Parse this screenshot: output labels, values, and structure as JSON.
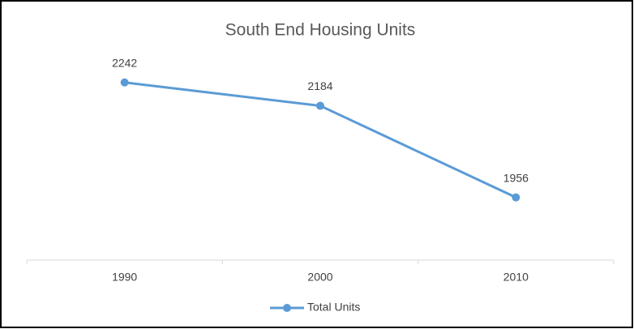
{
  "chart_data": {
    "type": "line",
    "title": "South End Housing Units",
    "categories": [
      "1990",
      "2000",
      "2010"
    ],
    "series": [
      {
        "name": "Total Units",
        "color": "#5b9bd5",
        "values": [
          2242,
          2184,
          1956
        ]
      }
    ],
    "ylim": [
      1800,
      2300
    ],
    "legend": "bottom"
  }
}
